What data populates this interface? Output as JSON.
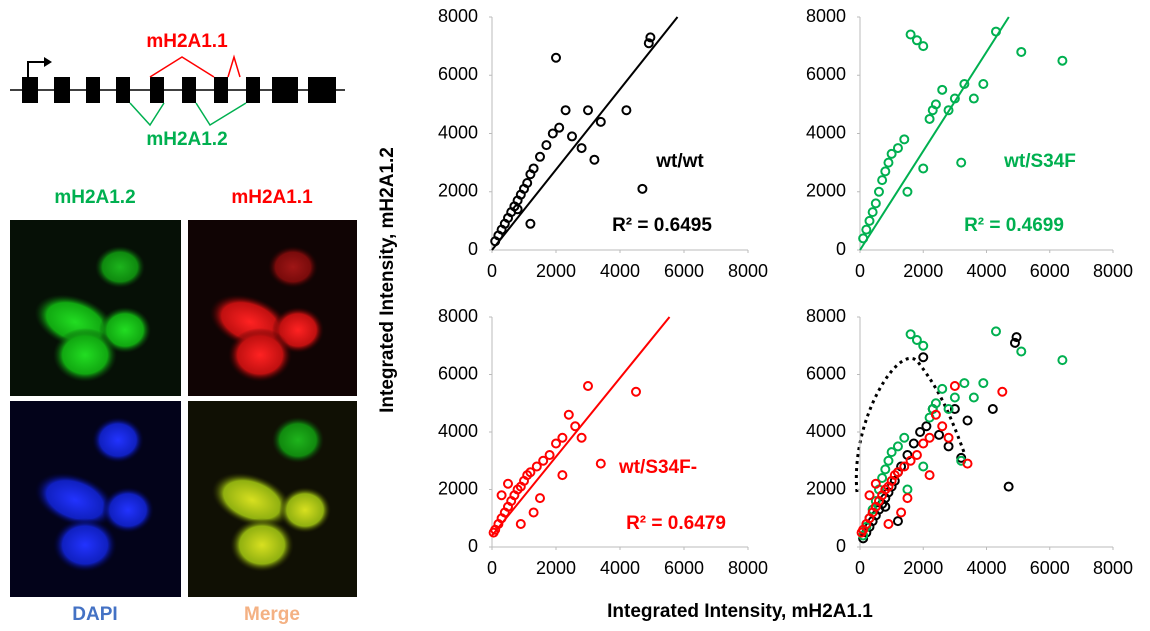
{
  "diagram": {
    "labels": [
      "mH2A1.1",
      "mH2A1.2"
    ]
  },
  "image_labels": [
    "mH2A1.2",
    "mH2A1.1",
    "DAPI",
    "Merge"
  ],
  "y_label": "Integrated Intensity, mH2A1.2",
  "x_label": "Integrated Intensity, mH2A1.1",
  "chart_data": [
    {
      "type": "scatter",
      "label": "wt/wt",
      "r2_label": "R² = 0.6495",
      "series": [
        {
          "name": "wt/wt",
          "color": "#000000",
          "x": [
            100,
            200,
            300,
            400,
            500,
            600,
            700,
            800,
            900,
            1000,
            1100,
            1200,
            1300,
            1500,
            1700,
            1900,
            2100,
            2300,
            2500,
            2800,
            3000,
            3400,
            4200,
            4700,
            4900,
            4950,
            2000,
            1200,
            800,
            3200
          ],
          "values": [
            300,
            500,
            700,
            900,
            1100,
            1300,
            1500,
            1700,
            1900,
            2100,
            2300,
            2600,
            2800,
            3200,
            3600,
            4000,
            4200,
            4800,
            3900,
            3500,
            4800,
            4400,
            4800,
            2100,
            7100,
            7300,
            6600,
            900,
            1400,
            3100
          ]
        }
      ],
      "trendline": {
        "slope": 1.38,
        "intercept": 0
      },
      "xlim": [
        0,
        8000
      ],
      "xticks": [
        0,
        2000,
        4000,
        6000,
        8000
      ],
      "ylim": [
        0,
        8000
      ],
      "yticks": [
        0,
        2000,
        4000,
        6000,
        8000
      ]
    },
    {
      "type": "scatter",
      "label": "wt/S34F",
      "r2_label": "R² = 0.4699",
      "series": [
        {
          "name": "wt/S34F",
          "color": "#00b050",
          "x": [
            100,
            200,
            300,
            400,
            500,
            600,
            700,
            800,
            900,
            1000,
            1200,
            1400,
            1600,
            1800,
            2000,
            2200,
            2400,
            2600,
            2800,
            3000,
            3300,
            3600,
            3900,
            4300,
            5100,
            6400,
            1500,
            2000,
            2300,
            3200
          ],
          "values": [
            400,
            700,
            1000,
            1300,
            1600,
            2000,
            2400,
            2700,
            3000,
            3300,
            3500,
            3800,
            7400,
            7200,
            7000,
            4500,
            5000,
            5500,
            4800,
            5200,
            5700,
            5200,
            5700,
            7500,
            6800,
            6500,
            2000,
            2800,
            4800,
            3000
          ]
        }
      ],
      "trendline": {
        "slope": 1.7,
        "intercept": 0
      },
      "xlim": [
        0,
        8000
      ],
      "xticks": [
        0,
        2000,
        4000,
        6000,
        8000
      ],
      "ylim": [
        0,
        8000
      ],
      "yticks": [
        0,
        2000,
        4000,
        6000,
        8000
      ]
    },
    {
      "type": "scatter",
      "label": "wt/S34F-",
      "r2_label": "R² = 0.6479",
      "series": [
        {
          "name": "wt/S34F-",
          "color": "#ff0000",
          "x": [
            50,
            100,
            200,
            300,
            400,
            500,
            600,
            700,
            800,
            900,
            1000,
            1100,
            1200,
            1400,
            1600,
            1800,
            2000,
            2200,
            2400,
            2600,
            2800,
            3000,
            3400,
            4500,
            500,
            300,
            900,
            1500,
            2200,
            1300
          ],
          "values": [
            500,
            600,
            800,
            1000,
            1200,
            1400,
            1600,
            1800,
            2000,
            2100,
            2300,
            2500,
            2600,
            2800,
            3000,
            3200,
            3600,
            3800,
            4600,
            4200,
            3800,
            5600,
            2900,
            5400,
            2200,
            1800,
            800,
            1700,
            2500,
            1200
          ]
        }
      ],
      "trendline": {
        "slope": 1.37,
        "intercept": 400
      },
      "xlim": [
        0,
        8000
      ],
      "xticks": [
        0,
        2000,
        4000,
        6000,
        8000
      ],
      "ylim": [
        0,
        8000
      ],
      "yticks": [
        0,
        2000,
        4000,
        6000,
        8000
      ]
    },
    {
      "type": "scatter",
      "xlim": [
        0,
        8000
      ],
      "xticks": [
        0,
        2000,
        4000,
        6000,
        8000
      ],
      "ylim": [
        0,
        8000
      ],
      "yticks": [
        0,
        2000,
        4000,
        6000,
        8000
      ]
    }
  ]
}
